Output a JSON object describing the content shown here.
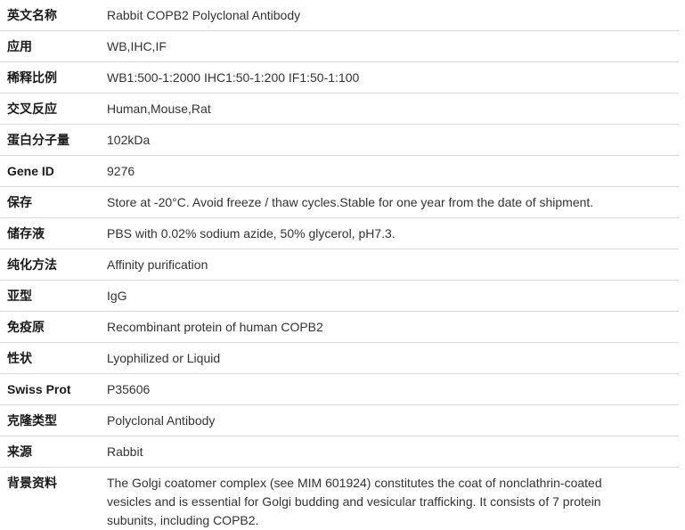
{
  "table": {
    "rows": [
      {
        "label": "英文名称",
        "value": "Rabbit COPB2 Polyclonal Antibody"
      },
      {
        "label": "应用",
        "value": "WB,IHC,IF"
      },
      {
        "label": "稀释比例",
        "value": "WB1:500-1:2000 IHC1:50-1:200 IF1:50-1:100"
      },
      {
        "label": "交叉反应",
        "value": "Human,Mouse,Rat"
      },
      {
        "label": "蛋白分子量",
        "value": "102kDa"
      },
      {
        "label": "Gene ID",
        "value": "9276"
      },
      {
        "label": "保存",
        "value": "Store at -20°C. Avoid freeze / thaw cycles.Stable for one year from the date of shipment."
      },
      {
        "label": "储存液",
        "value": "PBS with 0.02% sodium azide, 50% glycerol, pH7.3."
      },
      {
        "label": "纯化方法",
        "value": "Affinity purification"
      },
      {
        "label": "亚型",
        "value": "IgG"
      },
      {
        "label": "免疫原",
        "value": "Recombinant protein of human COPB2"
      },
      {
        "label": "性状",
        "value": "Lyophilized or Liquid"
      },
      {
        "label": "Swiss Prot",
        "value": "P35606"
      },
      {
        "label": "克隆类型",
        "value": "Polyclonal Antibody"
      },
      {
        "label": "来源",
        "value": "Rabbit"
      },
      {
        "label": "背景资料",
        "value": "The Golgi coatomer complex (see MIM 601924) constitutes the coat of nonclathrin-coated vesicles and is essential for Golgi budding and vesicular trafficking. It consists of 7 protein subunits, including COPB2."
      }
    ],
    "colors": {
      "divider": "#d9d9d9",
      "label_text": "#1a1a1a",
      "value_text": "#333333",
      "background": "#ffffff"
    }
  }
}
